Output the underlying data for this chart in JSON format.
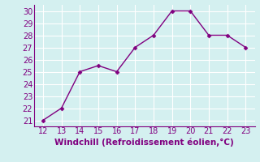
{
  "x": [
    12,
    13,
    14,
    15,
    16,
    17,
    18,
    19,
    20,
    21,
    22,
    23
  ],
  "y": [
    21,
    22,
    25,
    25.5,
    25,
    27,
    28,
    30,
    30,
    28,
    28,
    27
  ],
  "line_color": "#800080",
  "marker": "D",
  "marker_size": 2.5,
  "xlabel": "Windchill (Refroidissement éolien,°C)",
  "xlabel_fontsize": 7.5,
  "xlim": [
    11.5,
    23.5
  ],
  "ylim": [
    20.5,
    30.5
  ],
  "xticks": [
    12,
    13,
    14,
    15,
    16,
    17,
    18,
    19,
    20,
    21,
    22,
    23
  ],
  "yticks": [
    21,
    22,
    23,
    24,
    25,
    26,
    27,
    28,
    29,
    30
  ],
  "background_color": "#d4f0f0",
  "grid_color": "#ffffff",
  "tick_fontsize": 7,
  "line_width": 1.0,
  "spine_color": "#800080",
  "figsize": [
    3.2,
    2.0
  ],
  "dpi": 100
}
